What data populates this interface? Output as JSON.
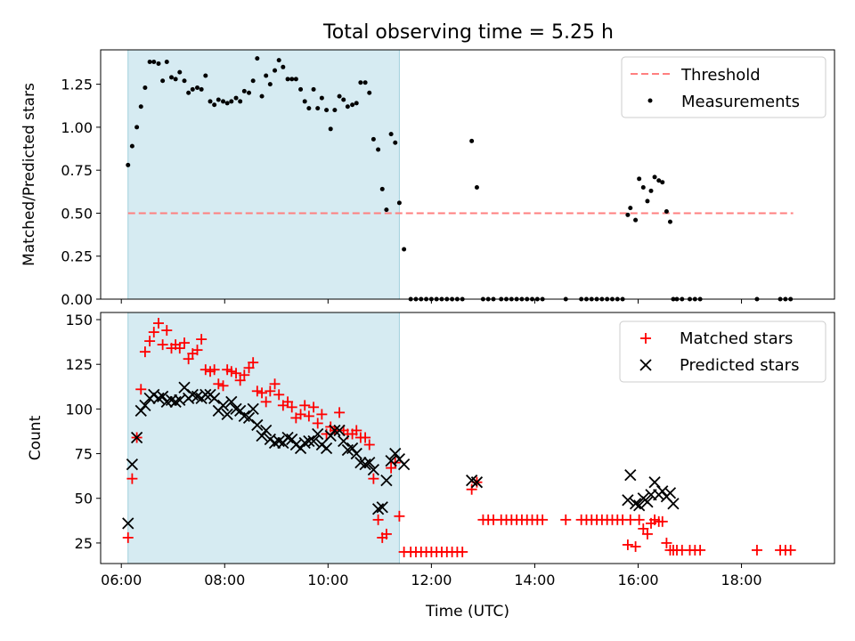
{
  "chart_data": {
    "title": "Total observing time = 5.25 h",
    "xlabel": "Time (UTC)",
    "x_unit": "hours UTC",
    "xlim": [
      5.6,
      19.8
    ],
    "xticks": [
      6,
      8,
      10,
      12,
      14,
      16,
      18
    ],
    "xtick_labels": [
      "06:00",
      "08:00",
      "10:00",
      "12:00",
      "14:00",
      "16:00",
      "18:00"
    ],
    "shaded_span": [
      6.13,
      11.38
    ],
    "panels": [
      {
        "type": "scatter",
        "ylabel": "Matched/Predicted stars",
        "ylim": [
          0,
          1.45
        ],
        "yticks": [
          0,
          0.25,
          0.5,
          0.75,
          1.0,
          1.25
        ],
        "ytick_labels": [
          "0.00",
          "0.25",
          "0.50",
          "0.75",
          "1.00",
          "1.25"
        ],
        "legend_position": "upper right",
        "threshold": {
          "name": "Threshold",
          "y": 0.5,
          "x_range": [
            6.13,
            19.0
          ],
          "color": "#ff7f7f"
        },
        "series": [
          {
            "name": "Measurements",
            "color": "#000000",
            "x": [
              6.13,
              6.21,
              6.3,
              6.38,
              6.46,
              6.55,
              6.63,
              6.72,
              6.8,
              6.88,
              6.97,
              7.05,
              7.13,
              7.22,
              7.3,
              7.38,
              7.47,
              7.55,
              7.63,
              7.72,
              7.8,
              7.88,
              7.97,
              8.05,
              8.13,
              8.22,
              8.3,
              8.38,
              8.47,
              8.55,
              8.63,
              8.72,
              8.8,
              8.88,
              8.97,
              9.05,
              9.13,
              9.22,
              9.3,
              9.38,
              9.47,
              9.55,
              9.63,
              9.72,
              9.8,
              9.88,
              9.97,
              10.05,
              10.13,
              10.22,
              10.3,
              10.38,
              10.47,
              10.55,
              10.63,
              10.72,
              10.8,
              10.88,
              10.97,
              11.05,
              11.13,
              11.22,
              11.3,
              11.38,
              11.47,
              11.6,
              11.7,
              11.8,
              11.9,
              12.0,
              12.1,
              12.2,
              12.3,
              12.4,
              12.5,
              12.6,
              12.78,
              12.88,
              13.0,
              13.1,
              13.2,
              13.35,
              13.45,
              13.55,
              13.65,
              13.75,
              13.85,
              13.95,
              14.05,
              14.15,
              14.6,
              14.9,
              15.0,
              15.1,
              15.2,
              15.3,
              15.4,
              15.5,
              15.6,
              15.7,
              15.8,
              15.85,
              15.95,
              16.02,
              16.1,
              16.18,
              16.25,
              16.32,
              16.4,
              16.47,
              16.55,
              16.62,
              16.68,
              16.75,
              16.85,
              17.0,
              17.1,
              17.2,
              18.3,
              18.75,
              18.85,
              18.95
            ],
            "y": [
              0.78,
              0.89,
              1.0,
              1.12,
              1.23,
              1.38,
              1.38,
              1.37,
              1.27,
              1.38,
              1.29,
              1.28,
              1.32,
              1.27,
              1.2,
              1.22,
              1.23,
              1.22,
              1.3,
              1.15,
              1.13,
              1.16,
              1.15,
              1.14,
              1.15,
              1.17,
              1.15,
              1.21,
              1.2,
              1.27,
              1.4,
              1.18,
              1.3,
              1.25,
              1.33,
              1.39,
              1.35,
              1.28,
              1.28,
              1.28,
              1.22,
              1.15,
              1.11,
              1.22,
              1.11,
              1.17,
              1.1,
              0.99,
              1.1,
              1.18,
              1.16,
              1.12,
              1.13,
              1.14,
              1.26,
              1.26,
              1.2,
              0.93,
              0.87,
              0.64,
              0.52,
              0.96,
              0.91,
              0.56,
              0.29,
              0.0,
              0.0,
              0.0,
              0.0,
              0.0,
              0.0,
              0.0,
              0.0,
              0.0,
              0.0,
              0.0,
              0.92,
              0.65,
              0.0,
              0.0,
              0.0,
              0.0,
              0.0,
              0.0,
              0.0,
              0.0,
              0.0,
              0.0,
              0.0,
              0.0,
              0.0,
              0.0,
              0.0,
              0.0,
              0.0,
              0.0,
              0.0,
              0.0,
              0.0,
              0.0,
              0.49,
              0.53,
              0.46,
              0.7,
              0.65,
              0.57,
              0.63,
              0.71,
              0.69,
              0.68,
              0.51,
              0.45,
              0.0,
              0.0,
              0.0,
              0.0,
              0.0,
              0.0,
              0.0,
              0.0,
              0.0,
              0.0
            ]
          }
        ]
      },
      {
        "type": "scatter",
        "ylabel": "Count",
        "ylim": [
          13.5,
          154
        ],
        "yticks": [
          25,
          50,
          75,
          100,
          125,
          150
        ],
        "ytick_labels": [
          "25",
          "50",
          "75",
          "100",
          "125",
          "150"
        ],
        "legend_position": "upper right",
        "series": [
          {
            "name": "Matched stars",
            "marker": "+",
            "color": "#ff0000",
            "x": [
              6.13,
              6.21,
              6.3,
              6.38,
              6.46,
              6.55,
              6.63,
              6.72,
              6.8,
              6.88,
              6.97,
              7.05,
              7.13,
              7.22,
              7.3,
              7.38,
              7.47,
              7.55,
              7.63,
              7.72,
              7.8,
              7.88,
              7.97,
              8.05,
              8.13,
              8.22,
              8.3,
              8.38,
              8.47,
              8.55,
              8.63,
              8.72,
              8.8,
              8.88,
              8.97,
              9.05,
              9.13,
              9.22,
              9.3,
              9.38,
              9.47,
              9.55,
              9.63,
              9.72,
              9.8,
              9.88,
              9.97,
              10.05,
              10.13,
              10.22,
              10.3,
              10.38,
              10.47,
              10.55,
              10.63,
              10.72,
              10.8,
              10.88,
              10.97,
              11.05,
              11.13,
              11.22,
              11.3,
              11.38,
              11.47,
              11.6,
              11.7,
              11.8,
              11.9,
              12.0,
              12.1,
              12.2,
              12.3,
              12.4,
              12.5,
              12.6,
              12.78,
              12.88,
              13.0,
              13.1,
              13.2,
              13.35,
              13.45,
              13.55,
              13.65,
              13.75,
              13.85,
              13.95,
              14.05,
              14.15,
              14.6,
              14.9,
              15.0,
              15.1,
              15.2,
              15.3,
              15.4,
              15.5,
              15.6,
              15.7,
              15.8,
              15.85,
              15.95,
              16.02,
              16.1,
              16.18,
              16.25,
              16.32,
              16.4,
              16.47,
              16.55,
              16.62,
              16.68,
              16.75,
              16.85,
              17.0,
              17.1,
              17.2,
              18.3,
              18.75,
              18.85,
              18.95
            ],
            "y": [
              28,
              61,
              84,
              111,
              132,
              138,
              143,
              148,
              136,
              144,
              134,
              136,
              134,
              137,
              128,
              131,
              133,
              139,
              122,
              121,
              122,
              114,
              113,
              122,
              121,
              120,
              116,
              119,
              123,
              126,
              110,
              109,
              104,
              110,
              114,
              108,
              102,
              104,
              101,
              95,
              97,
              102,
              96,
              101,
              92,
              97,
              86,
              90,
              88,
              98,
              88,
              86,
              86,
              88,
              84,
              84,
              80,
              61,
              38,
              28,
              30,
              67,
              70,
              40,
              20,
              20,
              20,
              20,
              20,
              20,
              20,
              20,
              20,
              20,
              20,
              20,
              55,
              59,
              38,
              38,
              38,
              38,
              38,
              38,
              38,
              38,
              38,
              38,
              38,
              38,
              38,
              38,
              38,
              38,
              38,
              38,
              38,
              38,
              38,
              38,
              24,
              38,
              23,
              38,
              33,
              30,
              36,
              38,
              37,
              37,
              25,
              21,
              21,
              21,
              21,
              21,
              21,
              21,
              21,
              21,
              21,
              21
            ]
          },
          {
            "name": "Predicted stars",
            "marker": "x",
            "color": "#000000",
            "x": [
              6.13,
              6.21,
              6.3,
              6.38,
              6.46,
              6.55,
              6.63,
              6.72,
              6.8,
              6.88,
              6.97,
              7.05,
              7.13,
              7.22,
              7.3,
              7.38,
              7.47,
              7.55,
              7.63,
              7.72,
              7.8,
              7.88,
              7.97,
              8.05,
              8.13,
              8.22,
              8.3,
              8.38,
              8.47,
              8.55,
              8.63,
              8.72,
              8.8,
              8.88,
              8.97,
              9.05,
              9.13,
              9.22,
              9.3,
              9.38,
              9.47,
              9.55,
              9.63,
              9.72,
              9.8,
              9.88,
              9.97,
              10.05,
              10.13,
              10.22,
              10.3,
              10.38,
              10.47,
              10.55,
              10.63,
              10.72,
              10.8,
              10.88,
              10.97,
              11.05,
              11.13,
              11.22,
              11.3,
              11.38,
              11.47,
              12.78,
              12.88,
              15.8,
              15.85,
              15.95,
              16.02,
              16.1,
              16.18,
              16.25,
              16.32,
              16.4,
              16.47,
              16.55,
              16.62,
              16.68
            ],
            "y": [
              36,
              69,
              84,
              99,
              102,
              106,
              108,
              106,
              107,
              104,
              105,
              104,
              105,
              112,
              106,
              108,
              107,
              106,
              108,
              108,
              106,
              99,
              102,
              97,
              104,
              100,
              99,
              96,
              95,
              100,
              91,
              85,
              88,
              83,
              81,
              82,
              81,
              84,
              83,
              80,
              78,
              81,
              82,
              82,
              86,
              80,
              78,
              85,
              88,
              88,
              82,
              77,
              78,
              75,
              70,
              69,
              70,
              66,
              44,
              45,
              60,
              71,
              75,
              72,
              69,
              60,
              59,
              49,
              63,
              47,
              46,
              50,
              48,
              52,
              59,
              52,
              54,
              51,
              53,
              47
            ]
          }
        ]
      }
    ]
  }
}
